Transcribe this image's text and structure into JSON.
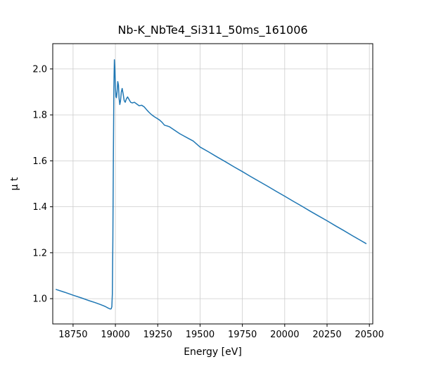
{
  "chart_data": {
    "type": "line",
    "title": "Nb-K_NbTe4_Si311_50ms_161006",
    "xlabel": "Energy [eV]",
    "ylabel": "μ t",
    "xlim": [
      18630,
      20520
    ],
    "ylim": [
      0.89,
      2.11
    ],
    "xticks": [
      18750,
      19000,
      19250,
      19500,
      19750,
      20000,
      20250,
      20500
    ],
    "yticks": [
      1.0,
      1.2,
      1.4,
      1.6,
      1.8,
      2.0
    ],
    "grid": true,
    "grid_color": "#cccccc",
    "line_color": "#1f77b4",
    "legend": "none",
    "series": [
      {
        "name": "mu_t",
        "x": [
          18650,
          18700,
          18750,
          18800,
          18850,
          18880,
          18910,
          18930,
          18945,
          18955,
          18963,
          18970,
          18975,
          18979,
          18982,
          18985,
          18988,
          18991,
          18994,
          18997,
          19000,
          19003,
          19006,
          19010,
          19014,
          19018,
          19022,
          19026,
          19030,
          19035,
          19040,
          19046,
          19052,
          19058,
          19065,
          19072,
          19080,
          19090,
          19100,
          19112,
          19125,
          19140,
          19155,
          19170,
          19185,
          19200,
          19215,
          19230,
          19245,
          19260,
          19275,
          19290,
          19305,
          19320,
          19340,
          19360,
          19380,
          19400,
          19430,
          19460,
          19500,
          19550,
          19600,
          19650,
          19700,
          19750,
          19800,
          19850,
          19900,
          19950,
          20000,
          20050,
          20100,
          20150,
          20200,
          20250,
          20300,
          20350,
          20400,
          20440,
          20480
        ],
        "y": [
          1.04,
          1.028,
          1.015,
          1.003,
          0.99,
          0.983,
          0.975,
          0.969,
          0.964,
          0.96,
          0.957,
          0.955,
          0.956,
          0.965,
          1.02,
          1.25,
          1.62,
          1.92,
          2.04,
          2.0,
          1.92,
          1.88,
          1.875,
          1.9,
          1.945,
          1.93,
          1.87,
          1.845,
          1.86,
          1.9,
          1.915,
          1.89,
          1.862,
          1.855,
          1.87,
          1.878,
          1.868,
          1.855,
          1.852,
          1.855,
          1.848,
          1.84,
          1.842,
          1.835,
          1.822,
          1.81,
          1.8,
          1.792,
          1.785,
          1.778,
          1.768,
          1.755,
          1.752,
          1.748,
          1.738,
          1.728,
          1.718,
          1.71,
          1.698,
          1.686,
          1.66,
          1.639,
          1.617,
          1.596,
          1.574,
          1.553,
          1.531,
          1.51,
          1.489,
          1.467,
          1.446,
          1.424,
          1.403,
          1.381,
          1.36,
          1.339,
          1.317,
          1.296,
          1.274,
          1.257,
          1.24
        ]
      }
    ]
  }
}
